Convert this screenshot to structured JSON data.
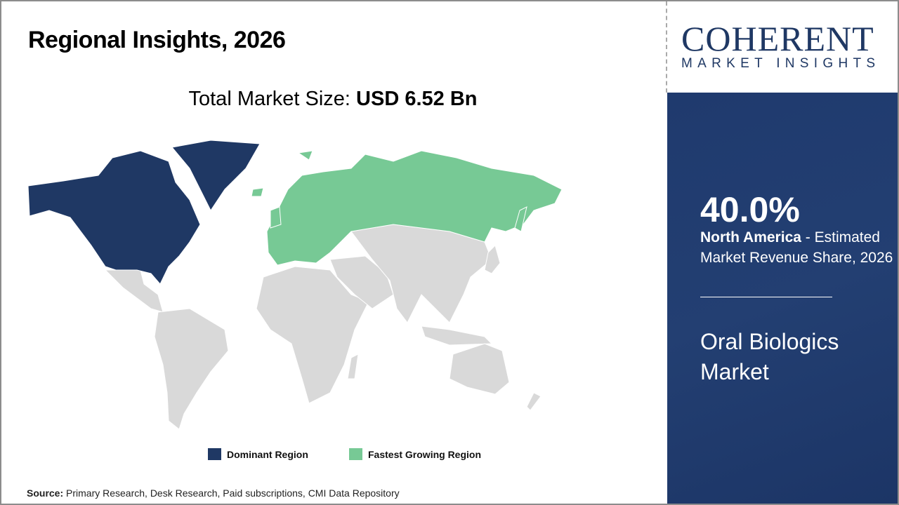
{
  "header": {
    "title": "Regional Insights, 2026"
  },
  "total_market": {
    "label": "Total Market Size:",
    "value": "USD 6.52 Bn"
  },
  "legend": [
    {
      "label": "Dominant Region",
      "color": "#1f3864"
    },
    {
      "label": "Fastest Growing Region",
      "color": "#77c995"
    }
  ],
  "map": {
    "dominant_region": "North America",
    "fastest_growing_region": "Europe",
    "other_color": "#d9d9d9"
  },
  "source": {
    "label": "Source:",
    "text": "Primary Research, Desk Research, Paid subscriptions, CMI Data Repository"
  },
  "logo": {
    "name": "COHERENT",
    "tagline": "MARKET INSIGHTS"
  },
  "panel": {
    "share": "40.0%",
    "region": "North America",
    "description": " - Estimated Market Revenue Share, 2026",
    "market_name": "Oral Biologics Market"
  }
}
